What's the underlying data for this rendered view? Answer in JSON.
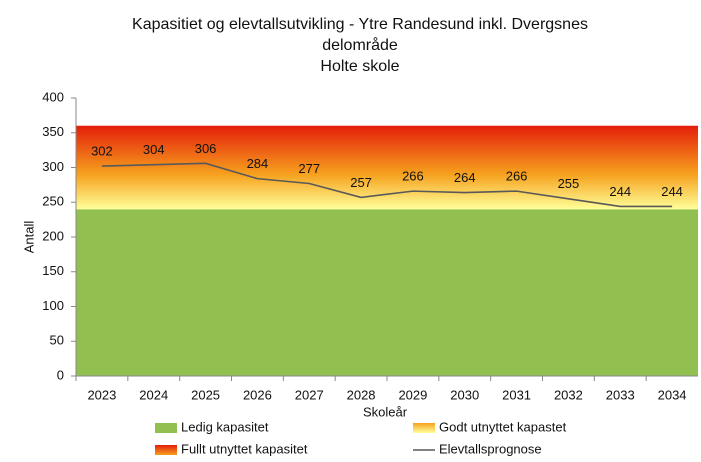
{
  "chart_data": {
    "type": "stacked-area-line",
    "title": "Kapasitiet og elevtallsutvikling - Ytre Randesund inkl. Dvergsnes delområde",
    "subtitle": "Holte skole",
    "x_label": "Skoleår",
    "y_label": "Antall",
    "categories": [
      "2023",
      "2024",
      "2025",
      "2026",
      "2027",
      "2028",
      "2029",
      "2030",
      "2031",
      "2032",
      "2033",
      "2034"
    ],
    "ylim": [
      0,
      400
    ],
    "yticks": [
      0,
      50,
      100,
      150,
      200,
      250,
      300,
      350,
      400
    ],
    "areas": [
      {
        "name": "Ledig kapasitet",
        "color": "#92c050",
        "values": [
          240,
          240,
          240,
          240,
          240,
          240,
          240,
          240,
          240,
          240,
          240,
          240
        ]
      },
      {
        "name": "Godt utnyttet kapastet",
        "color": [
          "#ffff99",
          "#f6a21e"
        ],
        "values": [
          50,
          50,
          50,
          50,
          50,
          50,
          50,
          50,
          50,
          50,
          50,
          50
        ]
      },
      {
        "name": "Fullt utnyttet kapasitet",
        "color": [
          "#f6a21e",
          "#e41e0a"
        ],
        "values": [
          70,
          70,
          70,
          70,
          70,
          70,
          70,
          70,
          70,
          70,
          70,
          70
        ]
      }
    ],
    "series": [
      {
        "name": "Elevtallsprognose",
        "color": "#595959",
        "values": [
          302,
          304,
          306,
          284,
          277,
          257,
          266,
          264,
          266,
          255,
          244,
          244
        ]
      }
    ],
    "data_labels": true,
    "legend": "bottom"
  }
}
